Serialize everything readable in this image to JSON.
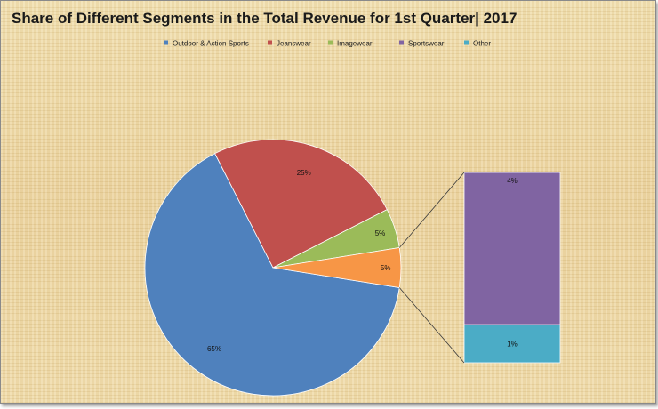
{
  "chart_data": {
    "type": "pie",
    "title": "Share of Different Segments in the Total Revenue for 1st Quarter| 2017",
    "categories": [
      "Outdoor & Action Sports",
      "Jeanswear",
      "Imagewear",
      "Sportswear",
      "Other"
    ],
    "values": [
      65,
      25,
      5,
      4,
      1
    ],
    "data_labels": [
      "65%",
      "25%",
      "5%",
      "4%",
      "1%"
    ],
    "grouped_label": "5%",
    "grouped_into_bar": [
      "Sportswear",
      "Other"
    ],
    "colors": [
      "#4f81bd",
      "#c0504d",
      "#9bbb59",
      "#8064a2",
      "#4bacc6"
    ],
    "grouped_color": "#f79646",
    "legend_position": "top"
  }
}
